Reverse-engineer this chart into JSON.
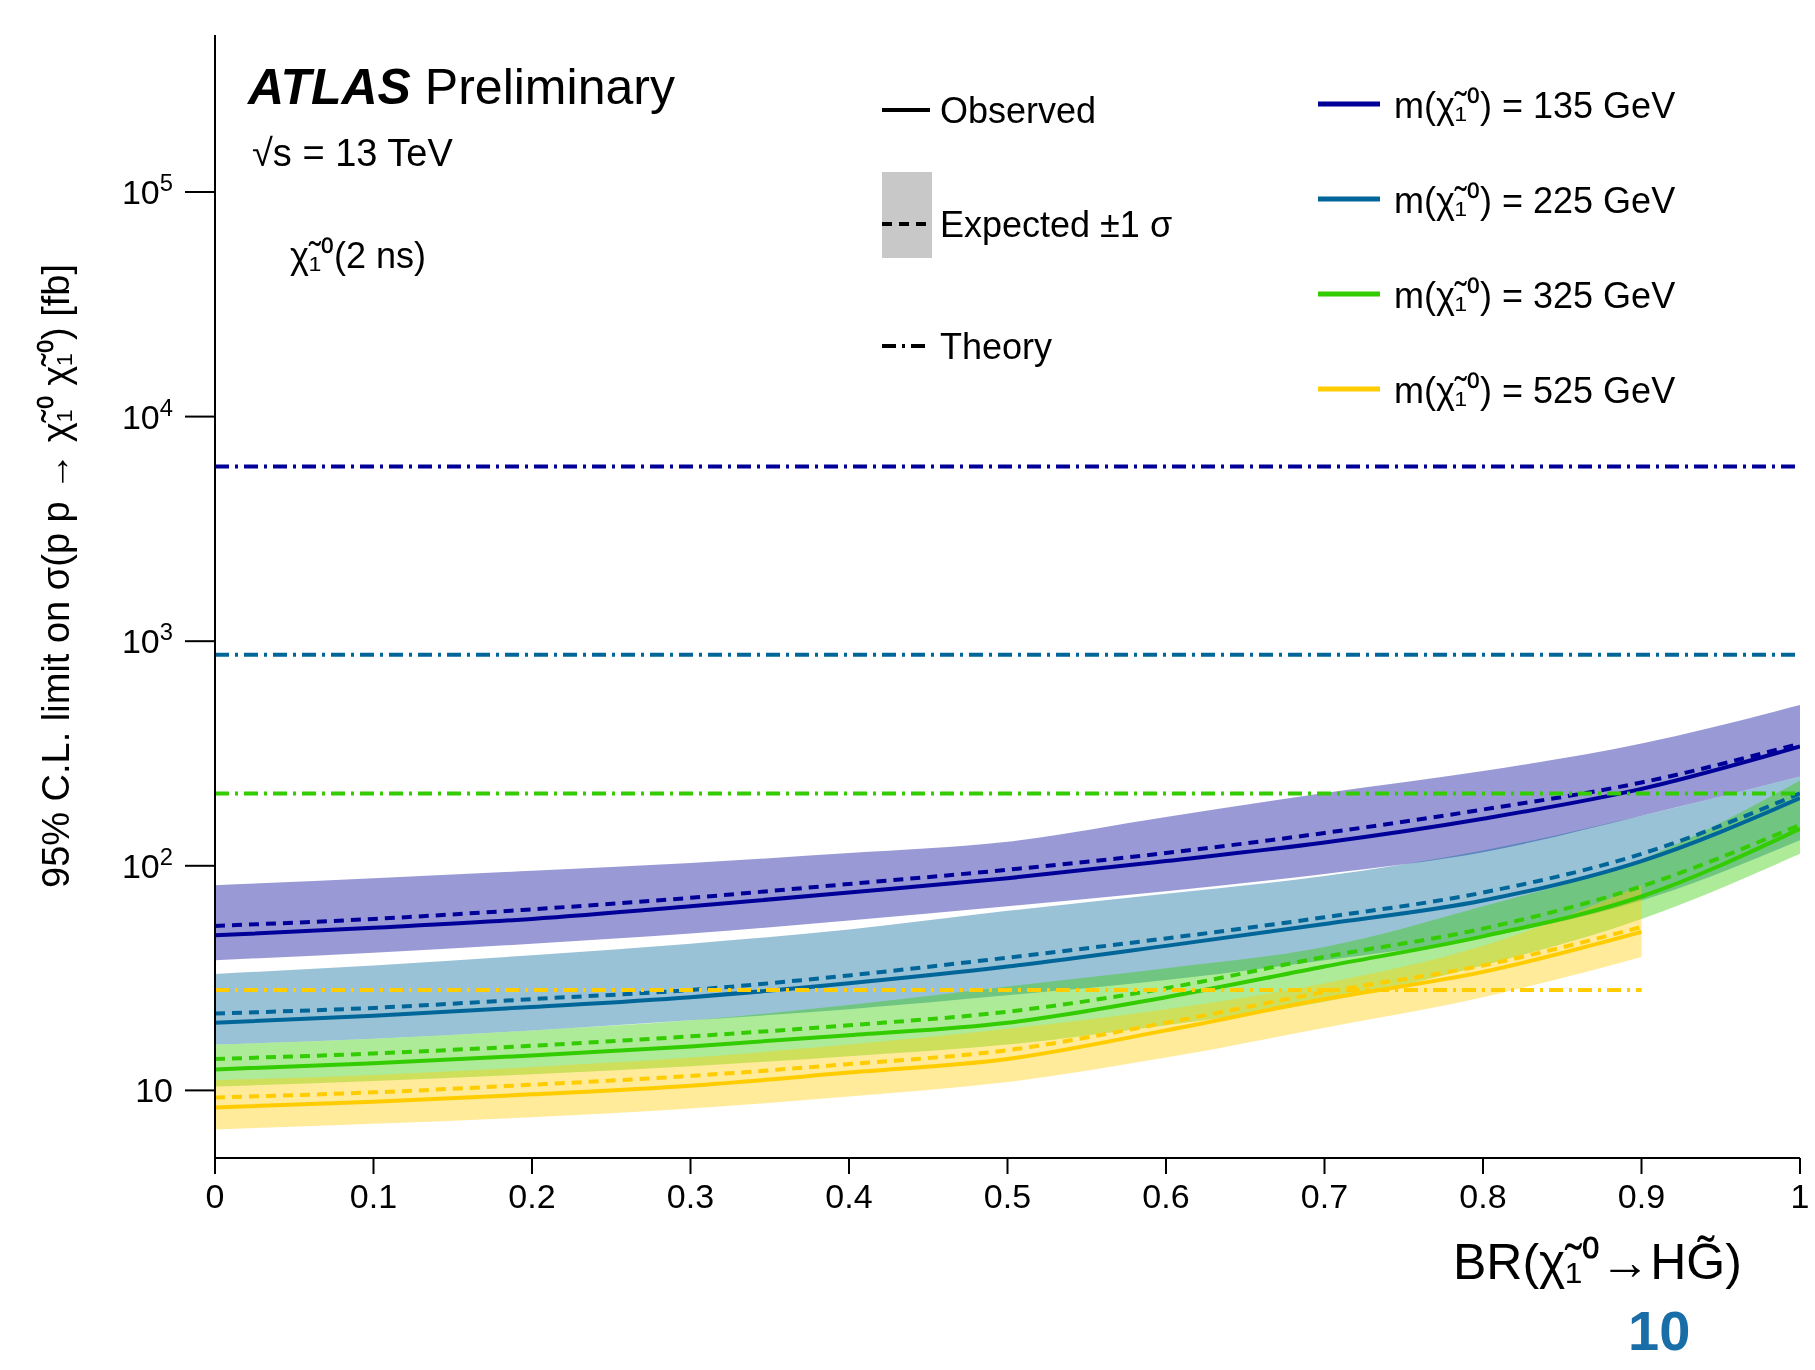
{
  "chart_data": {
    "type": "line",
    "title": "ATLAS Preliminary",
    "subtitle": "√s = 13 TeV",
    "xlabel": "BR(χ̃₁⁰→HG̃)",
    "ylabel": "95% C.L. limit on σ(p p → χ̃₁⁰ χ̃₁⁰) [fb]",
    "annotations": [
      "χ̃₁⁰(2 ns)",
      "Observed",
      "Expected ±1 σ",
      "Theory",
      "10"
    ],
    "x": [
      0,
      0.1,
      0.2,
      0.3,
      0.4,
      0.5,
      0.6,
      0.7,
      0.8,
      0.9,
      1
    ],
    "xlim": [
      0,
      1
    ],
    "xticks": [
      0,
      0.1,
      0.2,
      0.3,
      0.4,
      0.5,
      0.6,
      0.7,
      0.8,
      0.9,
      1
    ],
    "ylim": [
      5,
      500000
    ],
    "yticks": [
      10,
      {
        "value": 100,
        "label": "10$^{2}$"
      },
      {
        "value": 1000,
        "label": "10$^{3}$"
      },
      {
        "value": 10000,
        "label": "10$^{4}$"
      },
      {
        "value": 100000,
        "label": "10$^{5}$"
      }
    ],
    "log": "y",
    "legend": "top right",
    "marker": "none",
    "series": [
      {
        "name": "m(χ̃₁⁰) = 135 GeV",
        "color": "#000099",
        "line_style": "solid",
        "values": [
          49,
          53,
          58,
          66,
          76,
          88,
          105,
          127,
          162,
          220,
          340
        ]
      },
      {
        "color": "#000099",
        "line_style": "dashed",
        "values": [
          54,
          58,
          64,
          72,
          83,
          96,
          114,
          140,
          178,
          235,
          350
        ],
        "lower": [
          38,
          41,
          45,
          50,
          57,
          66,
          77,
          92,
          115,
          167,
          250
        ],
        "upper": [
          82,
          88,
          95,
          103,
          114,
          128,
          165,
          211,
          264,
          350,
          520
        ]
      },
      {
        "color": "#000099",
        "line_style": "dashdot",
        "x": [
          0,
          1
        ],
        "values": [
          6000,
          6000
        ]
      },
      {
        "name": "m(χ̃₁⁰) = 225 GeV",
        "color": "#006699",
        "line_style": "solid",
        "values": [
          20,
          21.5,
          23.5,
          26,
          30,
          35.6,
          44,
          55,
          70,
          105,
          200
        ]
      },
      {
        "color": "#006699",
        "line_style": "dashed",
        "values": [
          22,
          23.3,
          25.5,
          28,
          32.5,
          39,
          47.5,
          59,
          76,
          113,
          210
        ],
        "lower": [
          16,
          17,
          18.5,
          20.5,
          23,
          26.5,
          31,
          38,
          48,
          70,
          130
        ],
        "upper": [
          33,
          36,
          40,
          45,
          52,
          63,
          75,
          90,
          117,
          167,
          250
        ]
      },
      {
        "color": "#006699",
        "line_style": "dashdot",
        "x": [
          0,
          1
        ],
        "values": [
          870,
          870
        ]
      },
      {
        "name": "m(χ̃₁⁰) = 325 GeV",
        "color": "#33cc00",
        "line_style": "solid",
        "values": [
          12.4,
          13.2,
          14.3,
          15.7,
          17.6,
          20,
          26,
          35.6,
          48.5,
          73,
          146
        ]
      },
      {
        "color": "#33cc00",
        "line_style": "dashed",
        "values": [
          13.8,
          14.6,
          15.8,
          17.4,
          19.5,
          22.4,
          28.5,
          39.3,
          52.5,
          81,
          152
        ],
        "lower": [
          10.4,
          11,
          11.8,
          12.8,
          14.2,
          16,
          19.5,
          24.8,
          36,
          58,
          113
        ],
        "upper": [
          16,
          17,
          18.5,
          20.5,
          24,
          29,
          35,
          43.5,
          66,
          107,
          240
        ]
      },
      {
        "color": "#33cc00",
        "line_style": "dashdot",
        "x": [
          0,
          1
        ],
        "values": [
          210,
          210
        ]
      },
      {
        "name": "m(χ̃₁⁰) = 525 GeV",
        "color": "#ffcc00",
        "line_style": "solid",
        "x": [
          0,
          0.1,
          0.2,
          0.3,
          0.4,
          0.5,
          0.6,
          0.7,
          0.8,
          0.9
        ],
        "values": [
          8.4,
          8.9,
          9.6,
          10.5,
          12,
          13.8,
          18.5,
          25.5,
          33.7,
          50.8
        ]
      },
      {
        "color": "#ffcc00",
        "line_style": "dashed",
        "x": [
          0,
          0.1,
          0.2,
          0.3,
          0.4,
          0.5,
          0.6,
          0.7,
          0.8,
          0.9
        ],
        "values": [
          9.3,
          9.8,
          10.6,
          11.6,
          13.1,
          15.1,
          20,
          27.4,
          36,
          53.4
        ],
        "lower": [
          6.7,
          7.1,
          7.6,
          8.3,
          9.4,
          10.9,
          14,
          19,
          26,
          39.3
        ],
        "upper": [
          11.1,
          11.7,
          12.7,
          14,
          16,
          18.8,
          23,
          30,
          44,
          82
        ]
      },
      {
        "color": "#ffcc00",
        "line_style": "dashdot",
        "x": [
          0,
          0.9
        ],
        "values": [
          28,
          28
        ]
      }
    ]
  }
}
